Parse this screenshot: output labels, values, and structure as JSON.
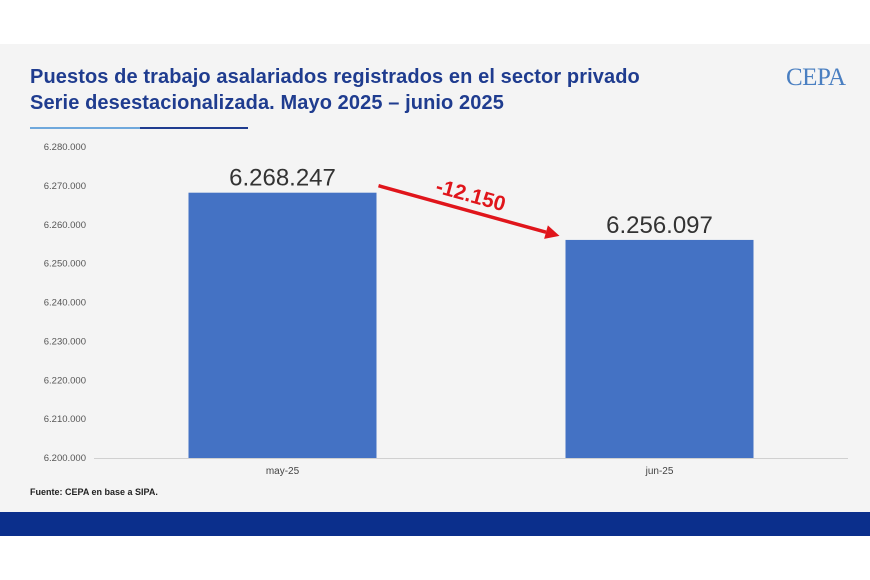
{
  "header": {
    "title_line1": "Puestos de trabajo asalariados registrados en el sector privado",
    "title_line2": "Serie desestacionalizada. Mayo 2025 – junio 2025",
    "logo_text": "CEPA"
  },
  "footer": {
    "source": "Fuente: CEPA en base a SIPA."
  },
  "colors": {
    "title": "#1f3c8f",
    "bar": "#4472c4",
    "arrow": "#e0151b",
    "band": "#0b2f8c"
  },
  "chart_data": {
    "type": "bar",
    "title": "Puestos de trabajo asalariados registrados en el sector privado",
    "subtitle": "Serie desestacionalizada. Mayo 2025 – junio 2025",
    "xlabel": "",
    "ylabel": "",
    "categories": [
      "may-25",
      "jun-25"
    ],
    "values": [
      6268247,
      6256097
    ],
    "data_labels": [
      "6.268.247",
      "6.256.097"
    ],
    "ylim": [
      6200000,
      6280000
    ],
    "yticks": [
      6200000,
      6210000,
      6220000,
      6230000,
      6240000,
      6250000,
      6260000,
      6270000,
      6280000
    ],
    "ytick_labels": [
      "6.200.000",
      "6.210.000",
      "6.220.000",
      "6.230.000",
      "6.240.000",
      "6.250.000",
      "6.260.000",
      "6.270.000",
      "6.280.000"
    ],
    "grid": false,
    "annotations": [
      {
        "text": "-12.150",
        "from": "may-25",
        "to": "jun-25",
        "kind": "arrow"
      }
    ]
  }
}
